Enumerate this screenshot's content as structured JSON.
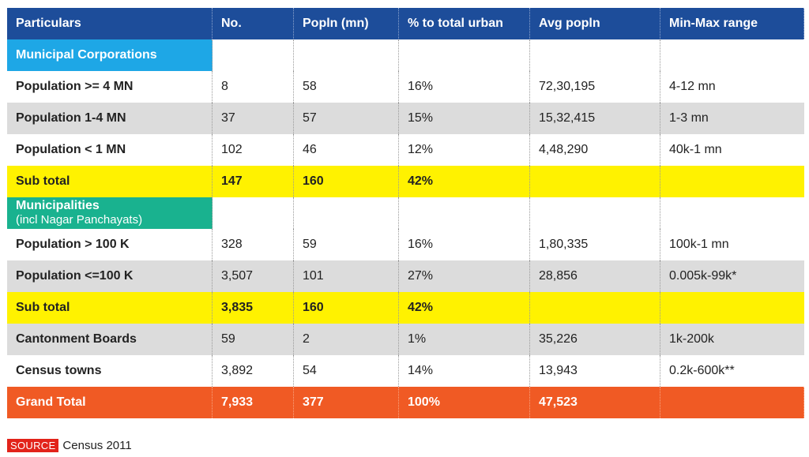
{
  "headers": [
    "Particulars",
    "No.",
    "Popln (mn)",
    "% to total urban",
    "Avg popln",
    "Min-Max range"
  ],
  "sections": {
    "municipal_corporations": "Municipal Corporations",
    "municipalities": "Municipalities",
    "municipalities_sub": "(incl Nagar Panchayats)"
  },
  "rows": {
    "r1": [
      "Population >= 4 MN",
      "8",
      "58",
      "16%",
      "72,30,195",
      "4-12 mn"
    ],
    "r2": [
      "Population 1-4 MN",
      "37",
      "57",
      "15%",
      "15,32,415",
      "1-3 mn"
    ],
    "r3": [
      "Population < 1 MN",
      "102",
      "46",
      "12%",
      "4,48,290",
      "40k-1 mn"
    ],
    "sub1": [
      "Sub total",
      "147",
      "160",
      "42%",
      "",
      ""
    ],
    "r4": [
      "Population > 100 K",
      "328",
      "59",
      "16%",
      "1,80,335",
      "100k-1 mn"
    ],
    "r5": [
      "Population <=100 K",
      "3,507",
      "101",
      "27%",
      "28,856",
      "0.005k-99k*"
    ],
    "sub2": [
      "Sub total",
      "3,835",
      "160",
      "42%",
      "",
      ""
    ],
    "r6": [
      "Cantonment Boards",
      "59",
      "2",
      "1%",
      "35,226",
      "1k-200k"
    ],
    "r7": [
      "Census towns",
      "3,892",
      "54",
      "14%",
      "13,943",
      "0.2k-600k**"
    ],
    "grand": [
      "Grand Total",
      "7,933",
      "377",
      "100%",
      "47,523",
      ""
    ]
  },
  "source": {
    "tag": "SOURCE",
    "text": "Census 2011"
  },
  "colors": {
    "header": "#1d4d9a",
    "mc_section": "#1ea7e6",
    "mu_section": "#19b28f",
    "subtotal": "#fff200",
    "grand_total": "#f05a24",
    "alt_row": "#dcdcdc"
  }
}
